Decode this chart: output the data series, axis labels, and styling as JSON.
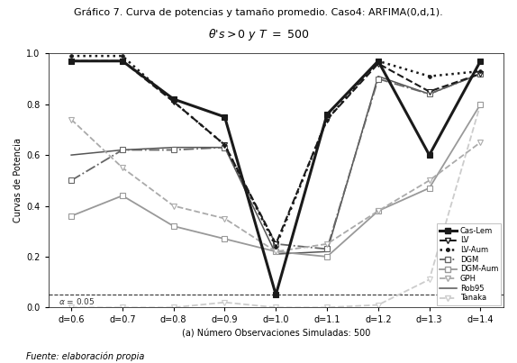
{
  "title_line1": "Gráfico 7. Curva de potencias y tamaño promedio. Caso4: ARFIMA(0,d,1).",
  "title_line2": "$\\theta$’s > 0 y T = 500",
  "xlabel": "(a) Número Observaciones Simuladas: 500",
  "ylabel": "Curvas de Potencia",
  "x_labels": [
    "d=0.6",
    "d=0.7",
    "d=0.8",
    "d=0.9",
    "d=1.0",
    "d=1.1",
    "d=1.2",
    "d=1.3",
    "d=1.4"
  ],
  "x_values": [
    0.6,
    0.7,
    0.8,
    0.9,
    1.0,
    1.1,
    1.2,
    1.3,
    1.4
  ],
  "alpha_line": 0.05,
  "series": {
    "Cas-Lem": {
      "values": [
        0.97,
        0.97,
        0.82,
        0.75,
        0.05,
        0.76,
        0.97,
        0.6,
        0.97
      ],
      "color": "#1a1a1a",
      "linestyle": "-",
      "linewidth": 2.2,
      "marker": "s",
      "markersize": 4,
      "markerfacecolor": "#1a1a1a",
      "zorder": 5
    },
    "LV": {
      "values": [
        0.97,
        0.97,
        0.81,
        0.64,
        0.25,
        0.74,
        0.96,
        0.85,
        0.92
      ],
      "color": "#1a1a1a",
      "linestyle": "--",
      "linewidth": 1.5,
      "marker": "v",
      "markersize": 4,
      "markerfacecolor": "white",
      "zorder": 4
    },
    "LV-Aum": {
      "values": [
        0.99,
        0.99,
        0.81,
        0.64,
        0.24,
        0.74,
        0.97,
        0.91,
        0.93
      ],
      "color": "#1a1a1a",
      "linestyle": ":",
      "linewidth": 1.8,
      "marker": ".",
      "markersize": 5,
      "markerfacecolor": "#1a1a1a",
      "zorder": 4
    },
    "DGM": {
      "values": [
        0.5,
        0.62,
        0.62,
        0.63,
        0.25,
        0.23,
        0.9,
        0.84,
        0.92
      ],
      "color": "#666666",
      "linestyle": "-.",
      "linewidth": 1.3,
      "marker": "s",
      "markersize": 4,
      "markerfacecolor": "white",
      "zorder": 3
    },
    "DGM-Aum": {
      "values": [
        0.36,
        0.44,
        0.32,
        0.27,
        0.22,
        0.2,
        0.38,
        0.47,
        0.8
      ],
      "color": "#999999",
      "linestyle": "-",
      "linewidth": 1.3,
      "marker": "s",
      "markersize": 4,
      "markerfacecolor": "white",
      "zorder": 3
    },
    "GPH": {
      "values": [
        0.74,
        0.55,
        0.4,
        0.35,
        0.22,
        0.25,
        0.38,
        0.5,
        0.65
      ],
      "color": "#aaaaaa",
      "linestyle": "--",
      "linewidth": 1.3,
      "marker": "v",
      "markersize": 4,
      "markerfacecolor": "white",
      "zorder": 3
    },
    "Rob95": {
      "values": [
        0.6,
        0.62,
        0.63,
        0.63,
        0.21,
        0.22,
        0.91,
        0.84,
        0.92
      ],
      "color": "#555555",
      "linestyle": "-",
      "linewidth": 1.1,
      "marker": null,
      "markersize": 0,
      "markerfacecolor": null,
      "zorder": 2
    },
    "Tanaka": {
      "values": [
        0.0,
        0.0,
        0.0,
        0.02,
        0.0,
        0.0,
        0.01,
        0.11,
        0.8
      ],
      "color": "#cccccc",
      "linestyle": "--",
      "linewidth": 1.3,
      "marker": "v",
      "markersize": 4,
      "markerfacecolor": "white",
      "zorder": 2
    }
  },
  "ylim": [
    0.0,
    1.0
  ],
  "yticks": [
    0.0,
    0.2,
    0.4,
    0.6,
    0.8,
    1.0
  ],
  "footnote": "Fuente: elaboración propia",
  "background_color": "#ffffff",
  "fig_width": 5.74,
  "fig_height": 4.03
}
